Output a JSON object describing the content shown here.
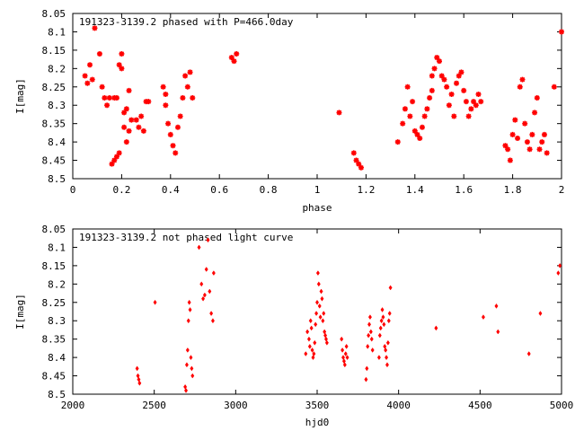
{
  "chart_data": [
    {
      "type": "scatter",
      "title": "191323-3139.2 phased with P=466.0day",
      "xlabel": "phase",
      "ylabel": "I[mag]",
      "xlim": [
        0,
        2
      ],
      "ylim": [
        8.05,
        8.5
      ],
      "y_inverted": true,
      "grid": false,
      "x_ticks": [
        "0",
        "0.2",
        "0.4",
        "0.6",
        "0.8",
        "1",
        "1.2",
        "1.4",
        "1.6",
        "1.8",
        "2"
      ],
      "y_ticks": [
        "8.05",
        "8.1",
        "8.15",
        "8.2",
        "8.25",
        "8.3",
        "8.35",
        "8.4",
        "8.45",
        "8.5"
      ],
      "marker_color": "#ff0000",
      "marker": "star",
      "series": [
        {
          "x": [
            0.05,
            0.06,
            0.07,
            0.08,
            0.09,
            0.11,
            0.12,
            0.13,
            0.14,
            0.15,
            0.16,
            0.17,
            0.17,
            0.18,
            0.18,
            0.19,
            0.19,
            0.2,
            0.2,
            0.21,
            0.21,
            0.22,
            0.22,
            0.23,
            0.23,
            0.24,
            0.26,
            0.27,
            0.28,
            0.29,
            0.3,
            0.31,
            0.37,
            0.38,
            0.38,
            0.39,
            0.4,
            0.41,
            0.42,
            0.43,
            0.44,
            0.45,
            0.46,
            0.47,
            0.48,
            0.49,
            0.65,
            0.66,
            0.67,
            1.09,
            1.15,
            1.16,
            1.17,
            1.18,
            1.33,
            1.35,
            1.36,
            1.37,
            1.38,
            1.39,
            1.4,
            1.41,
            1.42,
            1.43,
            1.44,
            1.45,
            1.46,
            1.47,
            1.47,
            1.48,
            1.49,
            1.5,
            1.51,
            1.52,
            1.53,
            1.54,
            1.55,
            1.56,
            1.57,
            1.58,
            1.59,
            1.6,
            1.61,
            1.62,
            1.63,
            1.64,
            1.65,
            1.66,
            1.67,
            1.77,
            1.78,
            1.79,
            1.8,
            1.81,
            1.82,
            1.83,
            1.84,
            1.85,
            1.86,
            1.87,
            1.88,
            1.89,
            1.9,
            1.91,
            1.92,
            1.93,
            1.94,
            1.97,
            2.0
          ],
          "y": [
            8.22,
            8.24,
            8.19,
            8.23,
            8.09,
            8.16,
            8.25,
            8.28,
            8.3,
            8.28,
            8.46,
            8.45,
            8.28,
            8.44,
            8.28,
            8.43,
            8.19,
            8.2,
            8.16,
            8.36,
            8.32,
            8.4,
            8.31,
            8.37,
            8.26,
            8.34,
            8.34,
            8.36,
            8.33,
            8.37,
            8.29,
            8.29,
            8.25,
            8.27,
            8.3,
            8.35,
            8.38,
            8.41,
            8.43,
            8.36,
            8.33,
            8.28,
            8.22,
            8.25,
            8.21,
            8.28,
            8.17,
            8.18,
            8.16,
            8.32,
            8.43,
            8.45,
            8.46,
            8.47,
            8.4,
            8.35,
            8.31,
            8.25,
            8.33,
            8.29,
            8.37,
            8.38,
            8.39,
            8.36,
            8.33,
            8.31,
            8.28,
            8.26,
            8.22,
            8.2,
            8.17,
            8.18,
            8.22,
            8.23,
            8.25,
            8.3,
            8.27,
            8.33,
            8.24,
            8.22,
            8.21,
            8.26,
            8.29,
            8.33,
            8.31,
            8.29,
            8.3,
            8.27,
            8.29,
            8.41,
            8.42,
            8.45,
            8.38,
            8.34,
            8.39,
            8.25,
            8.23,
            8.35,
            8.4,
            8.42,
            8.38,
            8.32,
            8.28,
            8.42,
            8.4,
            8.38,
            8.43,
            8.25,
            8.1
          ]
        }
      ]
    },
    {
      "type": "scatter",
      "title": "191323-3139.2 not phased light curve",
      "xlabel": "hjd0",
      "ylabel": "I[mag]",
      "xlim": [
        2000,
        5000
      ],
      "ylim": [
        8.05,
        8.5
      ],
      "y_inverted": true,
      "grid": false,
      "x_ticks": [
        "2000",
        "2500",
        "3000",
        "3500",
        "4000",
        "4500",
        "5000"
      ],
      "y_ticks": [
        "8.05",
        "8.1",
        "8.15",
        "8.2",
        "8.25",
        "8.3",
        "8.35",
        "8.4",
        "8.45",
        "8.5"
      ],
      "marker_color": "#ff0000",
      "marker": "diamond",
      "series": [
        {
          "x": [
            2395,
            2400,
            2405,
            2410,
            2505,
            2690,
            2695,
            2700,
            2705,
            2710,
            2715,
            2720,
            2725,
            2730,
            2735,
            2775,
            2790,
            2800,
            2810,
            2820,
            2830,
            2840,
            2850,
            2860,
            2865,
            3430,
            3440,
            3450,
            3455,
            3460,
            3465,
            3470,
            3475,
            3480,
            3485,
            3490,
            3495,
            3500,
            3505,
            3510,
            3515,
            3520,
            3525,
            3530,
            3535,
            3540,
            3545,
            3550,
            3555,
            3560,
            3650,
            3655,
            3660,
            3665,
            3670,
            3675,
            3680,
            3685,
            3800,
            3805,
            3810,
            3815,
            3820,
            3825,
            3830,
            3835,
            3840,
            3880,
            3885,
            3890,
            3895,
            3900,
            3905,
            3910,
            3915,
            3920,
            3925,
            3930,
            3935,
            3940,
            3945,
            3950,
            4230,
            4520,
            4600,
            4610,
            4800,
            4870,
            4980,
            4990
          ],
          "y": [
            8.43,
            8.45,
            8.46,
            8.47,
            8.25,
            8.48,
            8.49,
            8.42,
            8.38,
            8.3,
            8.25,
            8.27,
            8.4,
            8.43,
            8.45,
            8.1,
            8.2,
            8.24,
            8.23,
            8.16,
            8.08,
            8.22,
            8.28,
            8.3,
            8.17,
            8.39,
            8.33,
            8.35,
            8.37,
            8.3,
            8.32,
            8.38,
            8.4,
            8.39,
            8.36,
            8.31,
            8.28,
            8.25,
            8.17,
            8.2,
            8.26,
            8.29,
            8.22,
            8.24,
            8.3,
            8.28,
            8.33,
            8.34,
            8.35,
            8.36,
            8.35,
            8.38,
            8.4,
            8.41,
            8.42,
            8.39,
            8.37,
            8.4,
            8.46,
            8.43,
            8.37,
            8.34,
            8.31,
            8.29,
            8.33,
            8.35,
            8.38,
            8.4,
            8.34,
            8.32,
            8.3,
            8.27,
            8.29,
            8.31,
            8.37,
            8.38,
            8.4,
            8.42,
            8.36,
            8.3,
            8.28,
            8.21,
            8.32,
            8.29,
            8.26,
            8.33,
            8.39,
            8.28,
            8.17,
            8.15
          ]
        }
      ]
    }
  ]
}
